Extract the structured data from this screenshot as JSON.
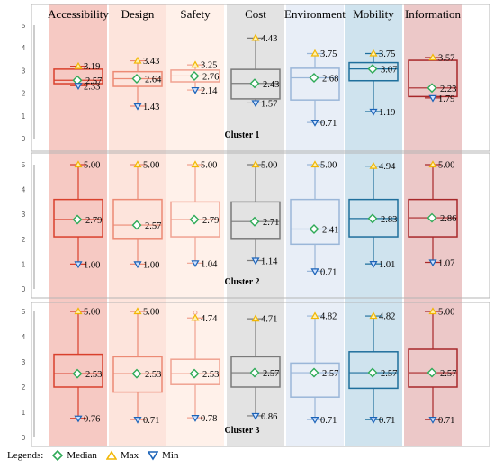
{
  "chart_data": {
    "type": "boxplot",
    "categories": [
      "Accessibility",
      "Design",
      "Safety",
      "Cost",
      "Environment",
      "Mobility",
      "Information"
    ],
    "category_colors": {
      "bg": [
        "#f6c9c3",
        "#fde4dc",
        "#fff1ea",
        "#e3e3e3",
        "#e8eef7",
        "#cfe3ee",
        "#ecc8c8"
      ],
      "box": [
        "#d9402c",
        "#ec8a74",
        "#f0a291",
        "#7a7a7a",
        "#9ab6d8",
        "#1f6f9c",
        "#a8282a"
      ]
    },
    "marker_colors": {
      "median": "#2eaa57",
      "max": "#f2b705",
      "min": "#1b63b8"
    },
    "ylim": [
      0,
      5
    ],
    "yticks": [
      "0",
      "1",
      "2",
      "3",
      "4",
      "5"
    ],
    "clusters": [
      {
        "label": "Cluster 1",
        "boxes": [
          {
            "q1": 2.42,
            "q3": 3.06,
            "median": 2.57,
            "max": 3.19,
            "min": 2.33,
            "median_label": "2.57",
            "max_label": "3.19",
            "min_label": "2.33"
          },
          {
            "q1": 2.3,
            "q3": 2.95,
            "median": 2.64,
            "max": 3.43,
            "min": 1.43,
            "median_label": "2.64",
            "max_label": "3.43",
            "min_label": "1.43"
          },
          {
            "q1": 2.5,
            "q3": 3.02,
            "median": 2.76,
            "max": 3.25,
            "min": 2.14,
            "median_label": "2.76",
            "max_label": "3.25",
            "min_label": "2.14"
          },
          {
            "q1": 1.75,
            "q3": 3.05,
            "median": 2.43,
            "max": 4.43,
            "min": 1.57,
            "median_label": "2.43",
            "max_label": "4.43",
            "min_label": "1.57"
          },
          {
            "q1": 1.7,
            "q3": 3.1,
            "median": 2.68,
            "max": 3.75,
            "min": 0.71,
            "median_label": "2.68",
            "max_label": "3.75",
            "min_label": "0.71"
          },
          {
            "q1": 2.55,
            "q3": 3.35,
            "median": 3.07,
            "max": 3.75,
            "min": 1.19,
            "median_label": "3.07",
            "max_label": "3.75",
            "min_label": "1.19"
          },
          {
            "q1": 1.85,
            "q3": 3.45,
            "median": 2.23,
            "max": 3.57,
            "min": 1.79,
            "median_label": "2.23",
            "max_label": "3.57",
            "min_label": "1.79"
          }
        ]
      },
      {
        "label": "Cluster 2",
        "boxes": [
          {
            "q1": 2.1,
            "q3": 3.6,
            "median": 2.79,
            "max": 5.0,
            "min": 1.0,
            "median_label": "2.79",
            "max_label": "5.00",
            "min_label": "1.00"
          },
          {
            "q1": 2.0,
            "q3": 3.6,
            "median": 2.57,
            "max": 5.0,
            "min": 1.0,
            "median_label": "2.57",
            "max_label": "5.00",
            "min_label": "1.00"
          },
          {
            "q1": 2.1,
            "q3": 3.5,
            "median": 2.79,
            "max": 5.0,
            "min": 1.04,
            "median_label": "2.79",
            "max_label": "5.00",
            "min_label": "1.04"
          },
          {
            "q1": 2.0,
            "q3": 3.5,
            "median": 2.71,
            "max": 5.0,
            "min": 1.14,
            "median_label": "2.71",
            "max_label": "5.00",
            "min_label": "1.14"
          },
          {
            "q1": 1.8,
            "q3": 3.6,
            "median": 2.41,
            "max": 5.0,
            "min": 0.71,
            "median_label": "2.41",
            "max_label": "5.00",
            "min_label": "0.71"
          },
          {
            "q1": 2.1,
            "q3": 3.6,
            "median": 2.83,
            "max": 4.94,
            "min": 1.01,
            "median_label": "2.83",
            "max_label": "4.94",
            "min_label": "1.01"
          },
          {
            "q1": 2.1,
            "q3": 3.6,
            "median": 2.86,
            "max": 5.0,
            "min": 1.07,
            "median_label": "2.86",
            "max_label": "5.00",
            "min_label": "1.07"
          }
        ]
      },
      {
        "label": "Cluster 3",
        "boxes": [
          {
            "q1": 2.0,
            "q3": 3.3,
            "median": 2.53,
            "max": 5.0,
            "min": 0.76,
            "median_label": "2.53",
            "max_label": "5.00",
            "min_label": "0.76"
          },
          {
            "q1": 1.8,
            "q3": 3.2,
            "median": 2.53,
            "max": 5.0,
            "min": 0.71,
            "median_label": "2.53",
            "max_label": "5.00",
            "min_label": "0.71"
          },
          {
            "q1": 2.1,
            "q3": 3.1,
            "median": 2.53,
            "max": 4.74,
            "min": 0.78,
            "median_label": "2.53",
            "max_label": "4.74",
            "min_label": "0.78",
            "outlier": 4.95
          },
          {
            "q1": 2.0,
            "q3": 3.2,
            "median": 2.57,
            "max": 4.71,
            "min": 0.86,
            "median_label": "2.57",
            "max_label": "4.71",
            "min_label": "0.86"
          },
          {
            "q1": 1.6,
            "q3": 2.95,
            "median": 2.57,
            "max": 4.82,
            "min": 0.71,
            "median_label": "2.57",
            "max_label": "4.82",
            "min_label": "0.71"
          },
          {
            "q1": 1.95,
            "q3": 3.4,
            "median": 2.57,
            "max": 4.82,
            "min": 0.71,
            "median_label": "2.57",
            "max_label": "4.82",
            "min_label": "0.71"
          },
          {
            "q1": 2.0,
            "q3": 3.5,
            "median": 2.57,
            "max": 5.0,
            "min": 0.71,
            "median_label": "2.57",
            "max_label": "5.00",
            "min_label": "0.71"
          }
        ]
      }
    ],
    "legend": {
      "title": "Legends:",
      "median": "Median",
      "max": "Max",
      "min": "Min"
    }
  }
}
